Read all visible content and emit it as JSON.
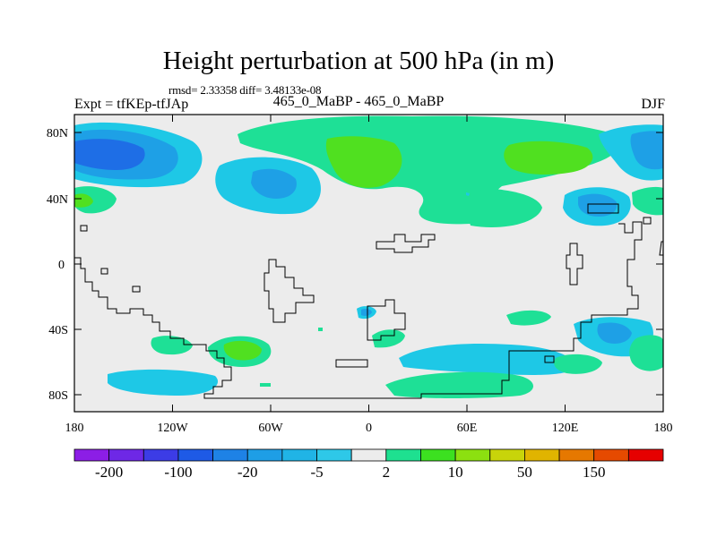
{
  "title": "Height perturbation at 500 hPa (in m)",
  "stats_line": "rmsd= 2.33358 diff= 3.48133e-08",
  "experiment_left": "Expt = tfKEp-tfJAp",
  "experiment_center": "465_0_MaBP - 465_0_MaBP",
  "season": "DJF",
  "map": {
    "lat_ticks": [
      "80N",
      "40N",
      "0",
      "40S",
      "80S"
    ],
    "lon_ticks": [
      "180",
      "120W",
      "60W",
      "0",
      "60E",
      "120E",
      "180"
    ]
  },
  "colorbar": {
    "colors": [
      "#8c1ee6",
      "#6e28e6",
      "#3c3ce6",
      "#1e5ae6",
      "#1e82e6",
      "#1e9ee6",
      "#20b4e6",
      "#2ec8e8",
      "#ececec",
      "#1ee090",
      "#3ce020",
      "#8ce010",
      "#c8d40a",
      "#e0b400",
      "#e67800",
      "#e64a00",
      "#e60000"
    ],
    "labels": [
      "-200",
      "-100",
      "-20",
      "-5",
      "2",
      "10",
      "50",
      "150"
    ],
    "label_color_index": [
      1,
      3,
      5,
      7,
      9,
      11,
      13,
      15
    ]
  },
  "legend_colors": {
    "land_outline": "#000000",
    "background": "#ececec",
    "neg_light": "#1ec8e6",
    "neg_mid": "#1ea0e6",
    "neg_dark": "#1e6ee6",
    "pos_light": "#1ee096",
    "pos_mid": "#50e020"
  }
}
